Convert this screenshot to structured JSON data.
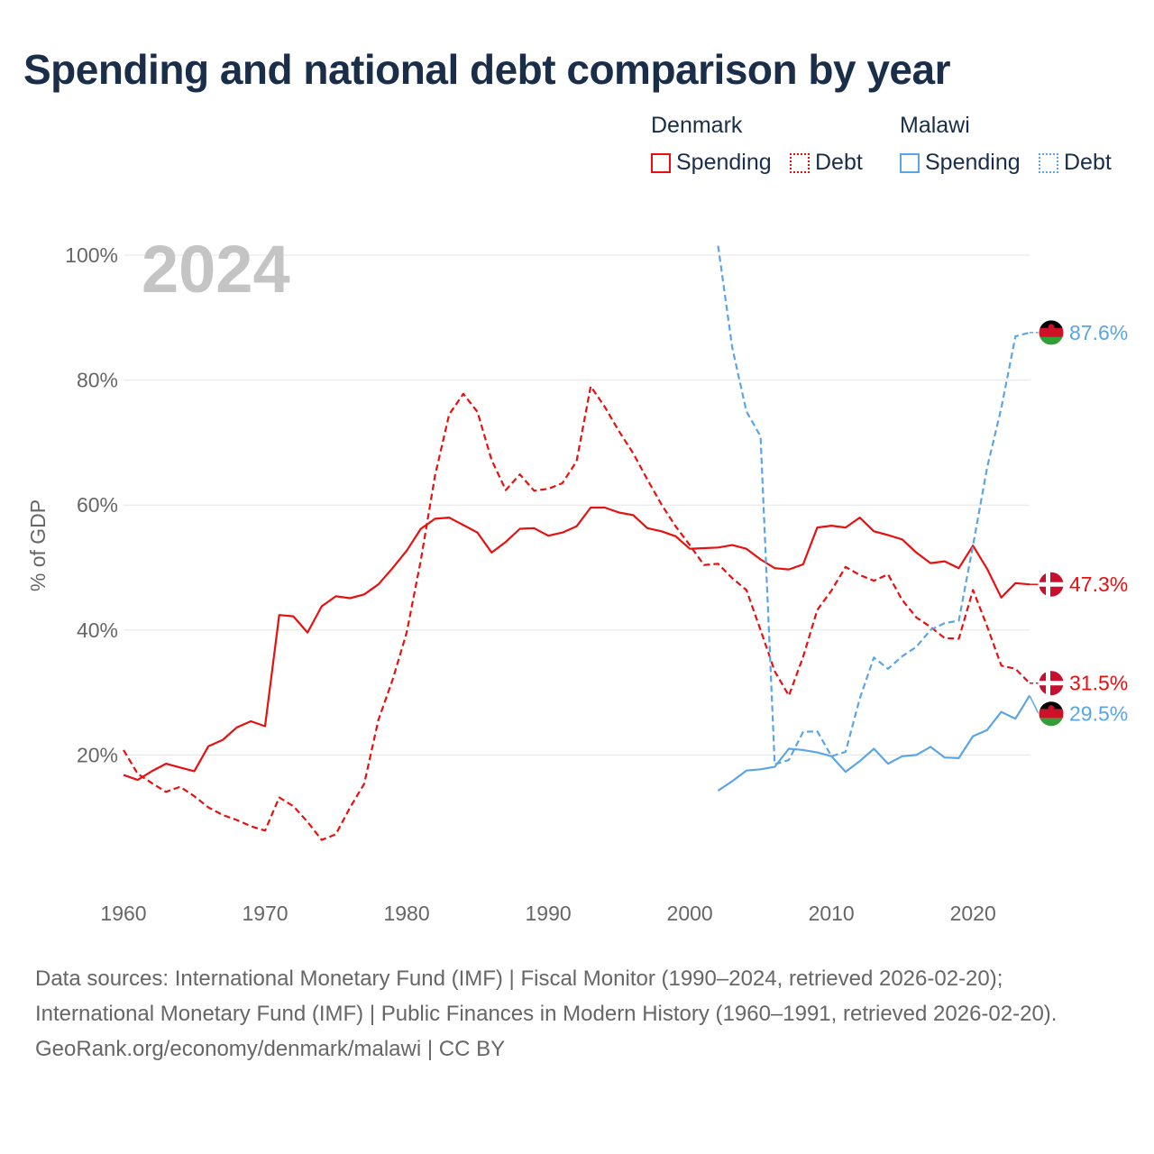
{
  "title": "Spending and national debt comparison by year",
  "legend": {
    "groups": [
      {
        "name": "Denmark",
        "items": [
          {
            "label": "Spending"
          },
          {
            "label": "Debt"
          }
        ]
      },
      {
        "name": "Malawi",
        "items": [
          {
            "label": "Spending"
          },
          {
            "label": "Debt"
          }
        ]
      }
    ]
  },
  "footer": {
    "sources": "Data sources: International Monetary Fund (IMF) | Fiscal Monitor (1990–2024, retrieved 2026-02-20); International Monetary Fund (IMF) | Public Finances in Modern History (1960–1991, retrieved 2026-02-20).",
    "credit": "GeoRank.org/economy/denmark/malawi | CC BY"
  },
  "colors": {
    "denmark": "#e8100f",
    "malawi": "#5aa5e8",
    "year_watermark": "#c4c4c4",
    "grid": "#e6e6e6",
    "axis_text": "#666666"
  },
  "chart_data": {
    "type": "line",
    "year_label": "2024",
    "ylabel": "% of GDP",
    "xlim": [
      1960,
      2024
    ],
    "ylim": [
      0,
      100
    ],
    "x_ticks": [
      1960,
      1970,
      1980,
      1990,
      2000,
      2010,
      2020
    ],
    "x_tick_labels": [
      "1960",
      "1970",
      "1980",
      "1990",
      "2000",
      "2010",
      "2020"
    ],
    "y_ticks": [
      20,
      40,
      60,
      80,
      100
    ],
    "y_tick_labels": [
      "20%",
      "40%",
      "60%",
      "80%",
      "100%"
    ],
    "series": [
      {
        "name": "Denmark Spending",
        "country": "Denmark",
        "style": "solid",
        "color": "#e8100f",
        "end_label": "47.3%",
        "points": [
          [
            1960,
            16.8
          ],
          [
            1961,
            16.0
          ],
          [
            1962,
            17.4
          ],
          [
            1963,
            18.6
          ],
          [
            1964,
            18.0
          ],
          [
            1965,
            17.4
          ],
          [
            1966,
            21.4
          ],
          [
            1967,
            22.4
          ],
          [
            1968,
            24.4
          ],
          [
            1969,
            25.4
          ],
          [
            1970,
            24.6
          ],
          [
            1971,
            42.4
          ],
          [
            1972,
            42.2
          ],
          [
            1973,
            39.6
          ],
          [
            1974,
            43.8
          ],
          [
            1975,
            45.4
          ],
          [
            1976,
            45.1
          ],
          [
            1977,
            45.7
          ],
          [
            1978,
            47.3
          ],
          [
            1979,
            49.9
          ],
          [
            1980,
            52.7
          ],
          [
            1981,
            56.2
          ],
          [
            1982,
            57.8
          ],
          [
            1983,
            58.0
          ],
          [
            1984,
            56.8
          ],
          [
            1985,
            55.6
          ],
          [
            1986,
            52.4
          ],
          [
            1987,
            54.1
          ],
          [
            1988,
            56.2
          ],
          [
            1989,
            56.3
          ],
          [
            1990,
            55.1
          ],
          [
            1991,
            55.6
          ],
          [
            1992,
            56.6
          ],
          [
            1993,
            59.6
          ],
          [
            1994,
            59.6
          ],
          [
            1995,
            58.8
          ],
          [
            1996,
            58.4
          ],
          [
            1997,
            56.3
          ],
          [
            1998,
            55.8
          ],
          [
            1999,
            55.0
          ],
          [
            2000,
            53.0
          ],
          [
            2001,
            53.1
          ],
          [
            2002,
            53.2
          ],
          [
            2003,
            53.6
          ],
          [
            2004,
            53.0
          ],
          [
            2005,
            51.3
          ],
          [
            2006,
            49.9
          ],
          [
            2007,
            49.7
          ],
          [
            2008,
            50.5
          ],
          [
            2009,
            56.4
          ],
          [
            2010,
            56.7
          ],
          [
            2011,
            56.4
          ],
          [
            2012,
            58.0
          ],
          [
            2013,
            55.8
          ],
          [
            2014,
            55.2
          ],
          [
            2015,
            54.5
          ],
          [
            2016,
            52.4
          ],
          [
            2017,
            50.7
          ],
          [
            2018,
            51.0
          ],
          [
            2019,
            49.9
          ],
          [
            2020,
            53.5
          ],
          [
            2021,
            49.8
          ],
          [
            2022,
            45.2
          ],
          [
            2023,
            47.5
          ],
          [
            2024,
            47.3
          ]
        ]
      },
      {
        "name": "Denmark Debt",
        "country": "Denmark",
        "style": "dashed",
        "color": "#e8100f",
        "end_label": "31.5%",
        "points": [
          [
            1960,
            20.8
          ],
          [
            1961,
            17.0
          ],
          [
            1962,
            15.5
          ],
          [
            1963,
            14.1
          ],
          [
            1964,
            14.9
          ],
          [
            1965,
            13.4
          ],
          [
            1966,
            11.6
          ],
          [
            1967,
            10.4
          ],
          [
            1968,
            9.6
          ],
          [
            1969,
            8.6
          ],
          [
            1970,
            7.9
          ],
          [
            1971,
            13.2
          ],
          [
            1972,
            11.8
          ],
          [
            1973,
            9.3
          ],
          [
            1974,
            6.4
          ],
          [
            1975,
            7.3
          ],
          [
            1976,
            11.6
          ],
          [
            1977,
            15.4
          ],
          [
            1978,
            25.6
          ],
          [
            1979,
            32.0
          ],
          [
            1980,
            39.6
          ],
          [
            1981,
            51.2
          ],
          [
            1982,
            64.7
          ],
          [
            1983,
            74.5
          ],
          [
            1984,
            77.8
          ],
          [
            1985,
            74.9
          ],
          [
            1986,
            67.2
          ],
          [
            1987,
            62.4
          ],
          [
            1988,
            64.9
          ],
          [
            1989,
            62.3
          ],
          [
            1990,
            62.6
          ],
          [
            1991,
            63.5
          ],
          [
            1992,
            67.0
          ],
          [
            1993,
            79.0
          ],
          [
            1994,
            75.7
          ],
          [
            1995,
            71.8
          ],
          [
            1996,
            68.3
          ],
          [
            1997,
            64.1
          ],
          [
            1998,
            60.1
          ],
          [
            1999,
            56.6
          ],
          [
            2000,
            53.6
          ],
          [
            2001,
            50.4
          ],
          [
            2002,
            50.6
          ],
          [
            2003,
            48.3
          ],
          [
            2004,
            46.4
          ],
          [
            2005,
            40.0
          ],
          [
            2006,
            33.4
          ],
          [
            2007,
            29.5
          ],
          [
            2008,
            35.7
          ],
          [
            2009,
            43.2
          ],
          [
            2010,
            46.3
          ],
          [
            2011,
            50.1
          ],
          [
            2012,
            48.8
          ],
          [
            2013,
            47.9
          ],
          [
            2014,
            48.9
          ],
          [
            2015,
            44.8
          ],
          [
            2016,
            42.0
          ],
          [
            2017,
            40.5
          ],
          [
            2018,
            38.7
          ],
          [
            2019,
            38.6
          ],
          [
            2020,
            46.4
          ],
          [
            2021,
            40.6
          ],
          [
            2022,
            34.3
          ],
          [
            2023,
            33.8
          ],
          [
            2024,
            31.5
          ]
        ]
      },
      {
        "name": "Malawi Spending",
        "country": "Malawi",
        "style": "solid",
        "color": "#5aa5e8",
        "end_label": "29.5%",
        "points": [
          [
            2002,
            14.3
          ],
          [
            2003,
            15.8
          ],
          [
            2004,
            17.5
          ],
          [
            2005,
            17.7
          ],
          [
            2006,
            18.1
          ],
          [
            2007,
            21.0
          ],
          [
            2008,
            20.8
          ],
          [
            2009,
            20.4
          ],
          [
            2010,
            19.8
          ],
          [
            2011,
            17.3
          ],
          [
            2012,
            19.0
          ],
          [
            2013,
            21.0
          ],
          [
            2014,
            18.6
          ],
          [
            2015,
            19.8
          ],
          [
            2016,
            20.0
          ],
          [
            2017,
            21.3
          ],
          [
            2018,
            19.6
          ],
          [
            2019,
            19.5
          ],
          [
            2020,
            23.0
          ],
          [
            2021,
            24.0
          ],
          [
            2022,
            26.9
          ],
          [
            2023,
            25.8
          ],
          [
            2024,
            29.5
          ]
        ]
      },
      {
        "name": "Malawi Debt",
        "country": "Malawi",
        "style": "dashed",
        "color": "#5aa5e8",
        "end_label": "87.6%",
        "points": [
          [
            2002,
            101.5
          ],
          [
            2003,
            85.2
          ],
          [
            2004,
            75.0
          ],
          [
            2005,
            71.0
          ],
          [
            2006,
            18.5
          ],
          [
            2007,
            19.2
          ],
          [
            2008,
            23.7
          ],
          [
            2009,
            23.8
          ],
          [
            2010,
            19.8
          ],
          [
            2011,
            20.5
          ],
          [
            2012,
            29.0
          ],
          [
            2013,
            35.6
          ],
          [
            2014,
            33.8
          ],
          [
            2015,
            35.8
          ],
          [
            2016,
            37.3
          ],
          [
            2017,
            40.0
          ],
          [
            2018,
            41.1
          ],
          [
            2019,
            41.5
          ],
          [
            2020,
            53.5
          ],
          [
            2021,
            66.0
          ],
          [
            2022,
            75.5
          ],
          [
            2023,
            87.0
          ],
          [
            2024,
            87.6
          ]
        ]
      }
    ]
  }
}
